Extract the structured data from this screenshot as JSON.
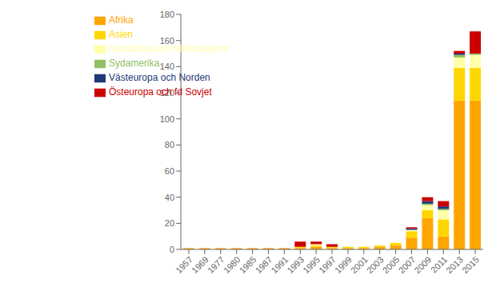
{
  "chart_data": {
    "type": "bar",
    "stacked": true,
    "grid": false,
    "legend": "upper left",
    "categories": [
      "1957",
      "1969",
      "1977",
      "1980",
      "1985",
      "1987",
      "1991",
      "1993",
      "1995",
      "1997",
      "1999",
      "2001",
      "2003",
      "2005",
      "2007",
      "2009",
      "2011",
      "2013",
      "2015"
    ],
    "series": [
      {
        "name": "Afrika",
        "color": "#FFA500",
        "values": [
          1,
          1,
          1,
          1,
          1,
          1,
          1,
          1,
          2,
          1,
          1,
          1,
          2,
          3,
          9,
          24,
          10,
          114,
          114
        ]
      },
      {
        "name": "Asien",
        "color": "#FFD700",
        "values": [
          0,
          0,
          0,
          0,
          0,
          0,
          0,
          1,
          1,
          1,
          1,
          1,
          1,
          2,
          5,
          6,
          13,
          25,
          25
        ]
      },
      {
        "name": "Nordafrika och Mellanöstern",
        "color": "#FFFFAA",
        "values": [
          0,
          0,
          0,
          0,
          0,
          0,
          0,
          0,
          1,
          0,
          0,
          0,
          0,
          0,
          1,
          4,
          7,
          8,
          10
        ]
      },
      {
        "name": "Sydamerika",
        "color": "#90C060",
        "values": [
          0,
          0,
          0,
          0,
          0,
          0,
          0,
          0,
          0,
          0,
          0,
          0,
          0,
          0,
          0,
          1,
          1,
          2,
          1
        ]
      },
      {
        "name": "Västeuropa och Norden",
        "color": "#1F3878",
        "values": [
          0,
          0,
          0,
          0,
          0,
          0,
          0,
          0,
          0,
          0,
          0,
          0,
          0,
          0,
          1,
          2,
          2,
          1,
          0
        ]
      },
      {
        "name": "Östeuropa och fd Sovjet",
        "color": "#CC0000",
        "values": [
          0,
          0,
          0,
          0,
          0,
          0,
          0,
          4,
          2,
          2,
          0,
          0,
          0,
          0,
          1,
          3,
          4,
          2,
          17
        ]
      }
    ],
    "ylim": [
      0,
      180
    ],
    "yticks": [
      0,
      20,
      40,
      60,
      80,
      100,
      120,
      140,
      160,
      180
    ]
  }
}
